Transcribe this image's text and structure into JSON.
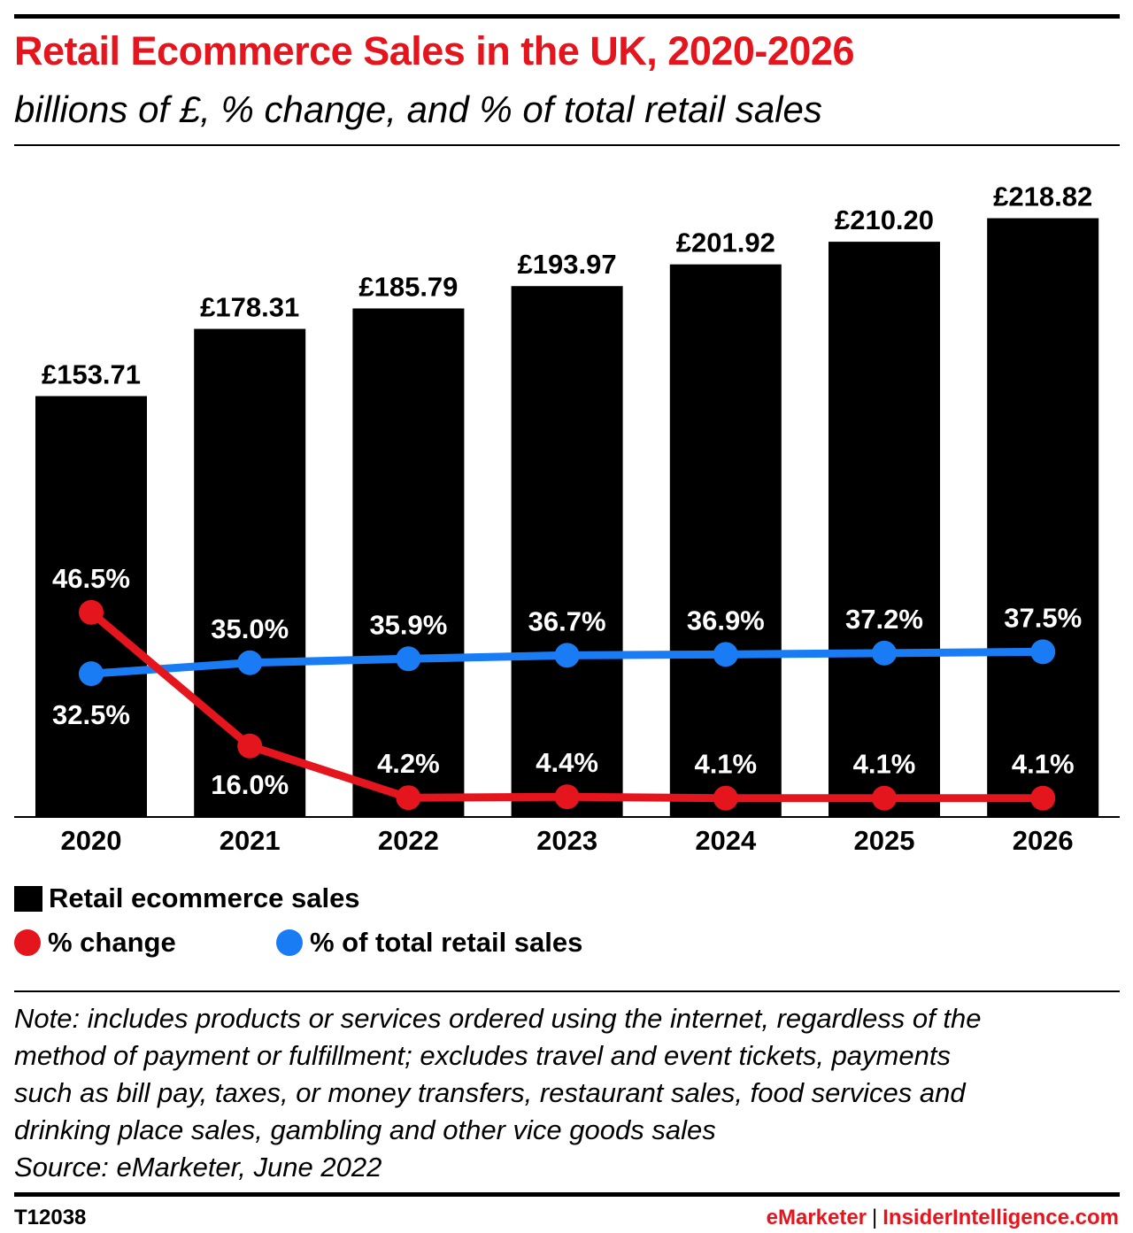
{
  "header": {
    "title": "Retail Ecommerce Sales in the UK, 2020-2026",
    "subtitle": "billions of £, % change, and % of total retail sales"
  },
  "colors": {
    "title": "#e5151e",
    "bars": "#000000",
    "pct_change": "#e5151e",
    "pct_total": "#1a7cf5"
  },
  "chart_data": {
    "type": "bar",
    "categories": [
      "2020",
      "2021",
      "2022",
      "2023",
      "2024",
      "2025",
      "2026"
    ],
    "series": [
      {
        "name": "Retail ecommerce sales",
        "type": "bar",
        "values": [
          153.71,
          178.31,
          185.79,
          193.97,
          201.92,
          210.2,
          218.82
        ],
        "labels": [
          "£153.71",
          "£178.31",
          "£185.79",
          "£193.97",
          "£201.92",
          "£210.20",
          "£218.82"
        ]
      },
      {
        "name": "% change",
        "type": "line",
        "values": [
          46.5,
          16.0,
          4.2,
          4.4,
          4.1,
          4.1,
          4.1
        ],
        "labels": [
          "46.5%",
          "16.0%",
          "4.2%",
          "4.4%",
          "4.1%",
          "4.1%",
          "4.1%"
        ]
      },
      {
        "name": "% of total retail sales",
        "type": "line",
        "values": [
          32.5,
          35.0,
          35.9,
          36.7,
          36.9,
          37.2,
          37.5
        ],
        "labels": [
          "32.5%",
          "35.0%",
          "35.9%",
          "36.7%",
          "36.9%",
          "37.2%",
          "37.5%"
        ]
      }
    ]
  },
  "legend": {
    "bars_label": "Retail ecommerce sales",
    "pct_change_label": "% change",
    "pct_total_label": "% of total retail sales"
  },
  "note": {
    "lines": [
      "Note: includes products or services ordered using the internet, regardless of the",
      "method of payment or fulfillment; excludes travel and event tickets, payments",
      "such as bill pay, taxes, or money transfers, restaurant sales, food services and",
      "drinking place sales, gambling and other vice goods sales"
    ],
    "source": "Source: eMarketer, June 2022"
  },
  "footer": {
    "chart_id": "T12038",
    "brand_left": "eMarketer",
    "separator": "|",
    "brand_right": "InsiderIntelligence.com"
  }
}
